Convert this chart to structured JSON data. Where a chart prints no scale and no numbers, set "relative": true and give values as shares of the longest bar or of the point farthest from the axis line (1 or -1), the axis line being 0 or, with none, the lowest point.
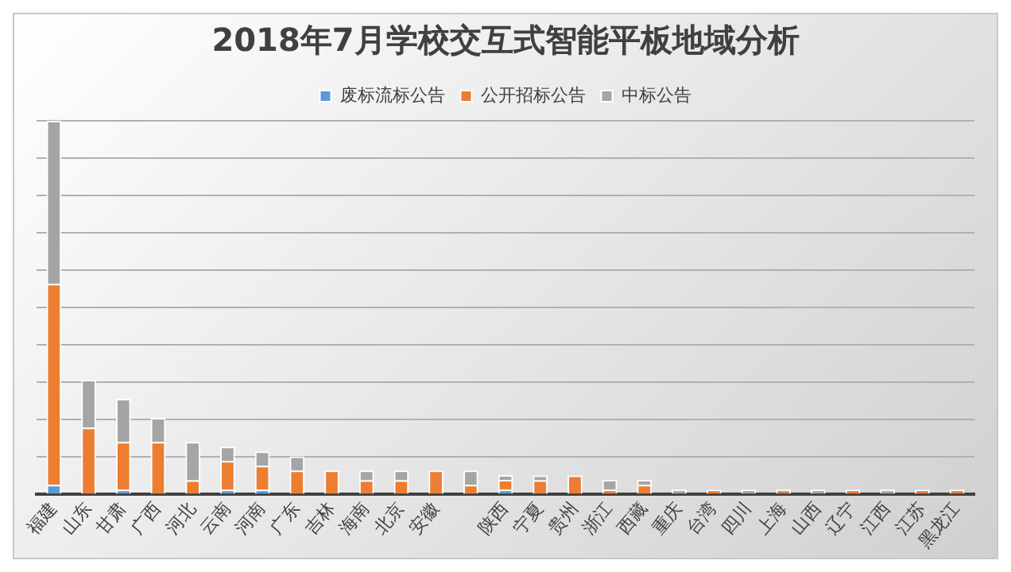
{
  "chart_data": {
    "type": "bar",
    "title": "2018年7月学校交互式智能平板地域分析",
    "relative": true,
    "stacked": true,
    "grid": "y",
    "legend": "top",
    "categories": [
      "福建",
      "山东",
      "甘肃",
      "广西",
      "河北",
      "云南",
      "河南",
      "广东",
      "吉林",
      "海南",
      "北京",
      "安徽",
      null,
      "陕西",
      "宁夏",
      "贵州",
      "浙江",
      "西藏",
      "重庆",
      "台湾",
      "四川",
      "上海",
      "山西",
      "辽宁",
      "江西",
      "江苏",
      "黑龙江"
    ],
    "series": [
      {
        "name": "废标流标公告",
        "color": "#5b9bd5",
        "values": [
          0.026,
          0,
          0.013,
          0,
          0,
          0.013,
          0.013,
          0,
          0,
          0,
          0,
          0,
          0,
          0.013,
          0,
          0,
          0,
          0,
          0,
          0,
          0,
          0,
          0,
          0,
          0,
          0,
          0
        ]
      },
      {
        "name": "公开招标公告",
        "color": "#ed7d31",
        "values": [
          0.538,
          0.179,
          0.128,
          0.141,
          0.038,
          0.077,
          0.064,
          0.064,
          0.064,
          0.038,
          0.038,
          0.064,
          0.026,
          0.026,
          0.038,
          0.051,
          0.013,
          0.026,
          0,
          0.013,
          0,
          0.013,
          0,
          0.013,
          0,
          0.013,
          0.013
        ]
      },
      {
        "name": "中标公告",
        "color": "#a5a5a5",
        "values": [
          0.436,
          0.128,
          0.115,
          0.064,
          0.103,
          0.038,
          0.038,
          0.038,
          0,
          0.026,
          0.026,
          0,
          0.038,
          0.013,
          0.013,
          0,
          0.026,
          0.013,
          0.013,
          0,
          0.013,
          0,
          0.013,
          0,
          0.013,
          0,
          0
        ]
      }
    ]
  }
}
